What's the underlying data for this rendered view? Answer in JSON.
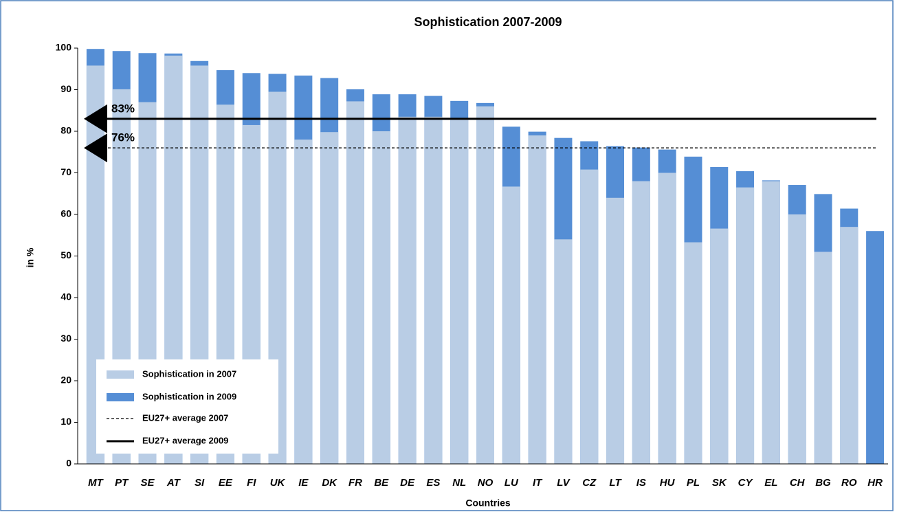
{
  "chart_data": {
    "type": "bar",
    "title": "Sophistication 2007-2009",
    "x_label": "Countries",
    "y_label": "in %",
    "categories": [
      "MT",
      "PT",
      "SE",
      "AT",
      "SI",
      "EE",
      "FI",
      "UK",
      "IE",
      "DK",
      "FR",
      "BE",
      "DE",
      "ES",
      "NL",
      "NO",
      "LU",
      "IT",
      "LV",
      "CZ",
      "LT",
      "IS",
      "HU",
      "PL",
      "SK",
      "CY",
      "EL",
      "CH",
      "BG",
      "RO",
      "HR"
    ],
    "series": [
      {
        "name": "Sophistication in 2009",
        "color": "#558ed5",
        "values": [
          99.8,
          99.3,
          98.8,
          98.7,
          96.9,
          94.7,
          94,
          93.8,
          93.4,
          92.8,
          90.1,
          88.9,
          88.9,
          88.5,
          87.3,
          86.8,
          81.1,
          79.9,
          78.4,
          77.6,
          76.4,
          76.1,
          75.6,
          73.9,
          71.4,
          70.4,
          68.2,
          67.1,
          64.9,
          61.4,
          56
        ]
      },
      {
        "name": "Sophistication in 2007",
        "color": "#b9cde5",
        "values": [
          95.8,
          90.1,
          87,
          98.2,
          95.8,
          86.4,
          81.5,
          89.5,
          78,
          79.8,
          87.2,
          80,
          83.5,
          83.5,
          83,
          86,
          66.7,
          79,
          54,
          70.8,
          64,
          68,
          70,
          53.3,
          56.6,
          66.5,
          68,
          60,
          51,
          57,
          null
        ]
      }
    ],
    "reference_lines": [
      {
        "name": "EU27+ average 2007",
        "value": 76,
        "label": "76%",
        "style": "dashed",
        "color": "#000000"
      },
      {
        "name": "EU27+ average 2009",
        "value": 83,
        "label": "83%",
        "style": "solid",
        "color": "#000000"
      }
    ],
    "ylim": [
      0,
      100
    ],
    "yticks": [
      0,
      10,
      20,
      30,
      40,
      50,
      60,
      70,
      80,
      90,
      100
    ],
    "grid": false,
    "legend_position": "lower left"
  }
}
